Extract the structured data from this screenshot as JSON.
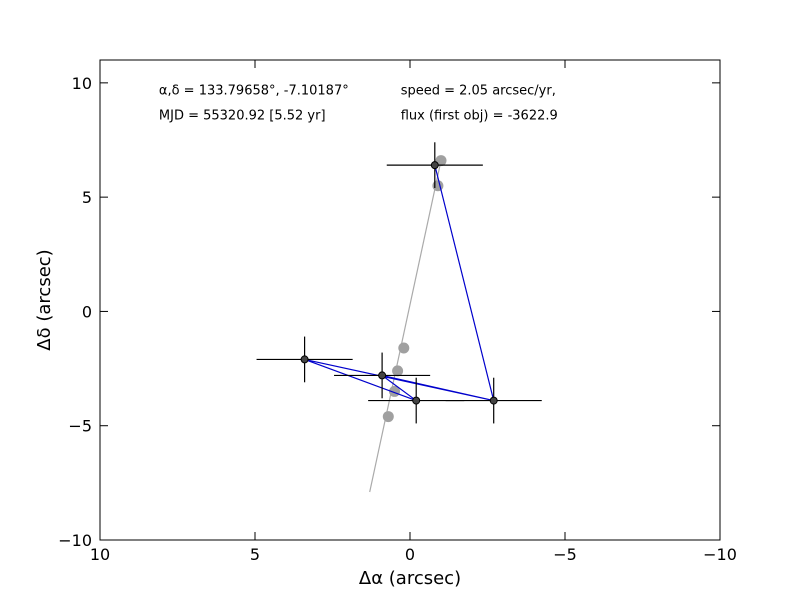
{
  "chart_data": {
    "type": "scatter",
    "xlabel": "Δα (arcsec)",
    "ylabel": "Δδ (arcsec)",
    "xlim": [
      10,
      -10
    ],
    "ylim": [
      -10,
      11
    ],
    "x_ticks": [
      10,
      5,
      0,
      -5,
      -10
    ],
    "x_tick_labels": [
      "10",
      "5",
      "0",
      "−5",
      "−10"
    ],
    "y_ticks": [
      10,
      5,
      0,
      -5,
      -10
    ],
    "y_tick_labels": [
      "10",
      "5",
      "0",
      "−5",
      "−10"
    ],
    "grid": false,
    "annotations": [
      {
        "text": "α,δ = 133.79658°, -7.10187°",
        "x": 8.1,
        "y": 9.5
      },
      {
        "text": "MJD = 55320.92 [5.52 yr]",
        "x": 8.1,
        "y": 8.4
      },
      {
        "text": "speed = 2.05 arcsec/yr,",
        "x": 0.3,
        "y": 9.5
      },
      {
        "text": "flux (first obj) = -3622.9",
        "x": 0.3,
        "y": 8.4
      }
    ],
    "series": [
      {
        "kind": "fit_line",
        "color": "#aaaaaa",
        "points": [
          [
            1.3,
            -7.9
          ],
          [
            -1.0,
            6.6
          ]
        ]
      },
      {
        "kind": "predicted_points",
        "color": "#a0a0a0",
        "points": [
          [
            -1.0,
            6.6
          ],
          [
            -0.9,
            5.5
          ],
          [
            0.2,
            -1.6
          ],
          [
            0.4,
            -2.6
          ],
          [
            0.5,
            -3.5
          ],
          [
            0.7,
            -4.6
          ]
        ]
      },
      {
        "kind": "observed_path",
        "color": "#0000cc",
        "points": [
          [
            -0.8,
            6.4
          ],
          [
            -2.7,
            -3.9
          ],
          [
            3.4,
            -2.1
          ],
          [
            -0.2,
            -3.9
          ],
          [
            0.9,
            -2.8
          ],
          [
            -2.7,
            -3.9
          ]
        ]
      },
      {
        "kind": "observed_points",
        "color": "#000000",
        "points": [
          {
            "x": -0.8,
            "y": 6.4,
            "xerr": 1.0,
            "yerr": 1.0
          },
          {
            "x": -2.7,
            "y": -3.9,
            "xerr": 1.0,
            "yerr": 1.0
          },
          {
            "x": 3.4,
            "y": -2.1,
            "xerr": 1.0,
            "yerr": 1.0
          },
          {
            "x": -0.2,
            "y": -3.9,
            "xerr": 1.0,
            "yerr": 1.0
          },
          {
            "x": 0.9,
            "y": -2.8,
            "xerr": 1.0,
            "yerr": 1.0
          }
        ]
      }
    ]
  }
}
